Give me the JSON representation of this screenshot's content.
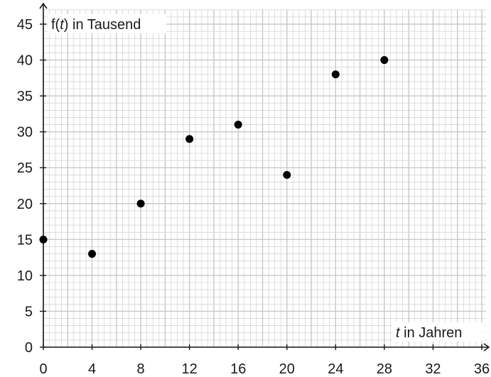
{
  "chart_data": {
    "type": "scatter",
    "ylabel_prefix": "f(",
    "ylabel_var": "t",
    "ylabel_suffix": ") in Tausend",
    "xlabel_var": "t",
    "xlabel_suffix": " in Jahren",
    "xlim": [
      0,
      36
    ],
    "ylim": [
      0,
      45
    ],
    "x_ticks": [
      0,
      4,
      8,
      12,
      16,
      20,
      24,
      28,
      32,
      36
    ],
    "y_ticks": [
      0,
      5,
      10,
      15,
      20,
      25,
      30,
      35,
      40,
      45
    ],
    "grid": true,
    "points": [
      {
        "x": 0,
        "y": 15
      },
      {
        "x": 4,
        "y": 13
      },
      {
        "x": 8,
        "y": 20
      },
      {
        "x": 12,
        "y": 29
      },
      {
        "x": 16,
        "y": 31
      },
      {
        "x": 20,
        "y": 24
      },
      {
        "x": 24,
        "y": 38
      },
      {
        "x": 28,
        "y": 40
      }
    ],
    "colors": {
      "grid": "#c8c8c8",
      "axis": "#1a1a1a",
      "point": "#000000"
    }
  }
}
